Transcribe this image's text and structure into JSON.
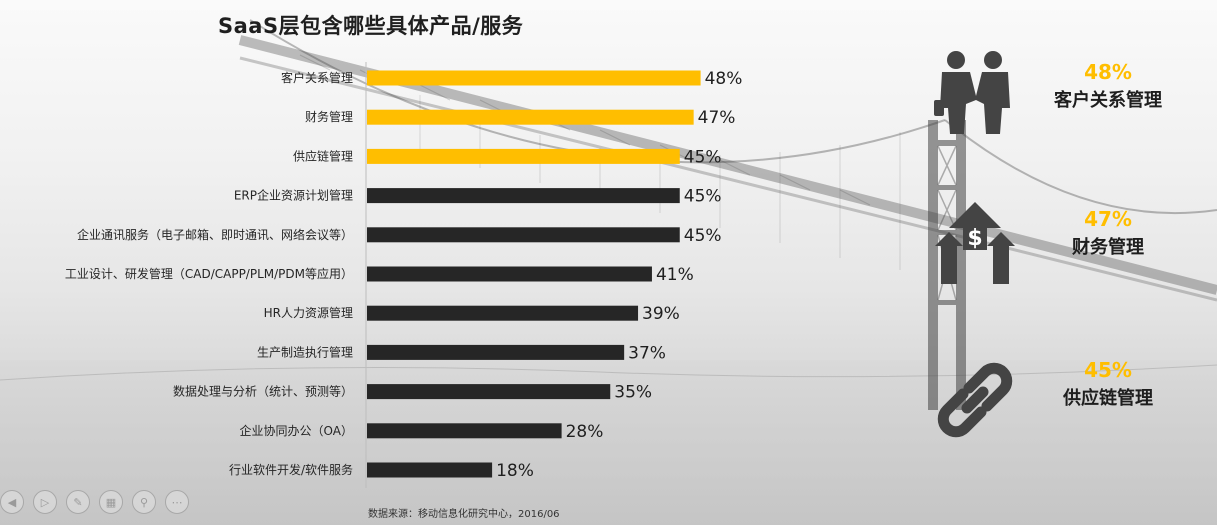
{
  "title": "SaaS层包含哪些具体产品/服务",
  "source": "数据来源：移动信息化研究中心，2016/06",
  "colors": {
    "highlight": "#ffbe00",
    "dark": "#262626"
  },
  "chart_data": {
    "type": "bar",
    "orientation": "horizontal",
    "categories": [
      "客户关系管理",
      "财务管理",
      "供应链管理",
      "ERP企业资源计划管理",
      "企业通讯服务（电子邮箱、即时通讯、网络会议等）",
      "工业设计、研发管理（CAD/CAPP/PLM/PDM等应用）",
      "HR人力资源管理",
      "生产制造执行管理",
      "数据处理与分析（统计、预测等）",
      "企业协同办公（OA）",
      "行业软件开发/软件服务"
    ],
    "values": [
      48,
      47,
      45,
      45,
      45,
      41,
      39,
      37,
      35,
      28,
      18
    ],
    "value_labels": [
      "48%",
      "47%",
      "45%",
      "45%",
      "45%",
      "41%",
      "39%",
      "37%",
      "35%",
      "28%",
      "18%"
    ],
    "highlighted_count": 3,
    "unit": "%",
    "xlim": [
      0,
      50
    ]
  },
  "kpis": [
    {
      "pct": "48%",
      "name": "客户关系管理",
      "icon": "people-handshake-icon"
    },
    {
      "pct": "47%",
      "name": "财务管理",
      "icon": "dollar-growth-arrows-icon"
    },
    {
      "pct": "45%",
      "name": "供应链管理",
      "icon": "chain-link-icon"
    }
  ],
  "toolbar": [
    "prev-icon",
    "play-icon",
    "pen-icon",
    "slides-icon",
    "zoom-icon",
    "more-icon"
  ]
}
